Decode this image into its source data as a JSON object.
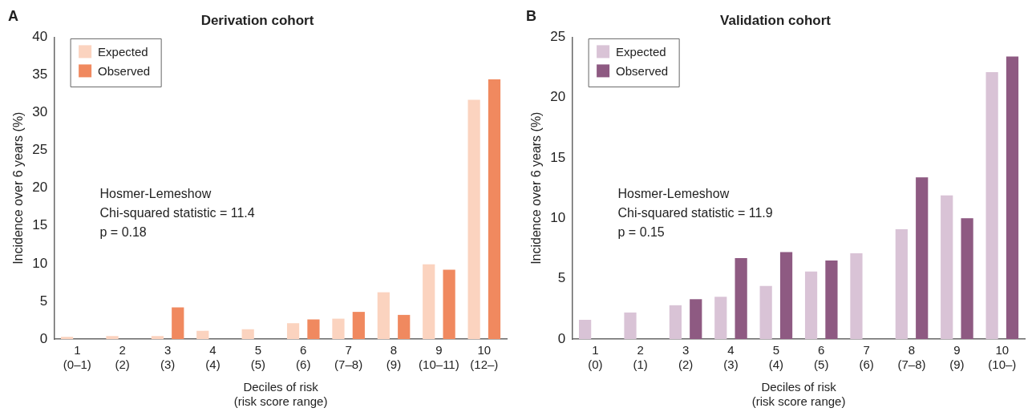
{
  "chart_data": [
    {
      "type": "bar",
      "title": "Derivation cohort",
      "xlabel": "Deciles of risk\n(risk score range)",
      "ylabel": "Incidence over 6 years (%)",
      "categories": [
        "1\n(0–1)",
        "2\n(2)",
        "3\n(3)",
        "4\n(4)",
        "5\n(5)",
        "6\n(6)",
        "7\n(7–8)",
        "8\n(9)",
        "9\n(10–11)",
        "10\n(12–)"
      ],
      "series": [
        {
          "name": "Expected",
          "color": "#fbd3bf",
          "values": [
            0.3,
            0.4,
            0.4,
            1.1,
            1.3,
            2.1,
            2.7,
            6.2,
            9.9,
            31.7
          ]
        },
        {
          "name": "Observed",
          "color": "#f0895f",
          "values": [
            0,
            0,
            4.2,
            0,
            0,
            2.6,
            3.6,
            3.2,
            9.2,
            34.4
          ]
        }
      ],
      "ylim": [
        0,
        40
      ],
      "yticks": [
        0,
        5,
        10,
        15,
        20,
        25,
        30,
        35,
        40
      ],
      "grid": false,
      "legend": "top left",
      "annotations": [
        "A",
        "Hosmer-Lemeshow\nChi-squared statistic = 11.4\np = 0.18"
      ]
    },
    {
      "type": "bar",
      "title": "Validation cohort",
      "xlabel": "Deciles of risk\n(risk score range)",
      "ylabel": "Incidence over 6 years (%)",
      "categories": [
        "1\n(0)",
        "2\n(1)",
        "3\n(2)",
        "4\n(3)",
        "5\n(4)",
        "6\n(5)",
        "7\n(6)",
        "8\n(7–8)",
        "9\n(9)",
        "10\n(10–)"
      ],
      "series": [
        {
          "name": "Expected",
          "color": "#d9c3d6",
          "values": [
            1.6,
            2.2,
            2.8,
            3.5,
            4.4,
            5.6,
            7.1,
            9.1,
            11.9,
            22.1
          ]
        },
        {
          "name": "Observed",
          "color": "#8e5a82",
          "values": [
            0,
            0,
            3.3,
            6.7,
            7.2,
            6.5,
            0,
            13.4,
            10.0,
            23.4
          ]
        }
      ],
      "ylim": [
        0,
        25
      ],
      "yticks": [
        0,
        5,
        10,
        15,
        20,
        25
      ],
      "grid": false,
      "legend": "top left",
      "annotations": [
        "B",
        "Hosmer-Lemeshow\nChi-squared statistic = 11.9\np = 0.15"
      ]
    }
  ]
}
